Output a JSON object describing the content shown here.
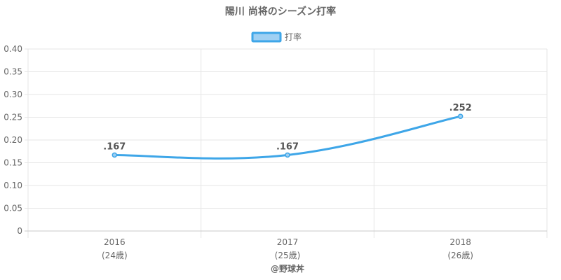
{
  "chart_data": {
    "type": "line",
    "title": "陽川 尚将のシーズン打率",
    "categories": [
      "2016",
      "2017",
      "2018"
    ],
    "category_sublabels": [
      "(24歳)",
      "(25歳)",
      "(26歳)"
    ],
    "series": [
      {
        "name": "打率",
        "values": [
          0.167,
          0.167,
          0.252
        ],
        "data_labels": [
          ".167",
          ".167",
          ".252"
        ],
        "color": "#3ea6e8",
        "fill": "#9fd0f3"
      }
    ],
    "ylim": [
      0,
      0.4
    ],
    "yticks": [
      "0",
      "0.05",
      "0.10",
      "0.15",
      "0.20",
      "0.25",
      "0.30",
      "0.35",
      "0.40"
    ],
    "legend": "top-center",
    "grid": true
  },
  "credit": "@野球丼"
}
